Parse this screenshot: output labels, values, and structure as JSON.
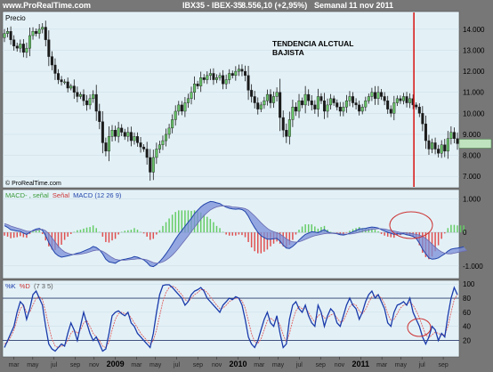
{
  "header": {
    "site": "www.ProRealTime.com",
    "instrument": "IBX35 - IBEX-35",
    "quote": "8.556,10 (+2,95%)",
    "period": "Semanal",
    "date": "11 nov 2011"
  },
  "colors": {
    "panel_bg": "#e3f1f7",
    "frame": "#7f7f7f",
    "candle": "#1a1a1a",
    "candle_up": "#66c266",
    "macd_line": "#2244aa",
    "macd_fill": "#7a8ed8",
    "hist_pos": "#66cc66",
    "hist_neg": "#e05050",
    "stoch_k": "#1a3aaa",
    "stoch_d": "#e06060",
    "annotation_line": "#d81e1e",
    "annotation_ellipse": "#cc3333"
  },
  "chart_data": [
    {
      "type": "candlestick",
      "label": "Precio",
      "watermark": "© ProRealTime.com",
      "annotation": [
        "TENDENCIA ALCTUAL",
        "BAJISTA"
      ],
      "ylim": [
        6500,
        14800
      ],
      "yticks": [
        "14.000",
        "13.000",
        "12.000",
        "11.000",
        "10.000",
        "9.000",
        "8.000",
        "7.000"
      ],
      "ytick_values": [
        14000,
        13000,
        12000,
        11000,
        10000,
        9000,
        8000,
        7000
      ],
      "vertical_marker_x": 0.904,
      "last_value": 8556.1,
      "close_series": [
        13800,
        13900,
        13500,
        13200,
        13100,
        13300,
        12900,
        13100,
        13700,
        13900,
        13800,
        14000,
        14100,
        13500,
        12700,
        12300,
        11900,
        11600,
        11500,
        11500,
        11200,
        11300,
        11000,
        10800,
        10900,
        10600,
        10400,
        10700,
        10900,
        10100,
        9600,
        8600,
        8200,
        8900,
        9200,
        8900,
        9300,
        9100,
        8900,
        9100,
        8700,
        8900,
        8600,
        8400,
        8300,
        7900,
        7200,
        7900,
        8300,
        8500,
        8700,
        9000,
        9300,
        9700,
        10100,
        10400,
        10100,
        10500,
        10700,
        11000,
        11400,
        11300,
        11700,
        11600,
        11800,
        11900,
        11600,
        11700,
        11800,
        11400,
        11600,
        11900,
        11800,
        12000,
        12100,
        12000,
        11800,
        11100,
        10800,
        10500,
        10200,
        10400,
        10600,
        10900,
        10500,
        10800,
        11000,
        9800,
        9200,
        8900,
        9700,
        10300,
        10100,
        10600,
        10400,
        10900,
        10600,
        10400,
        10200,
        10800,
        10600,
        10100,
        10400,
        10700,
        10500,
        10300,
        10100,
        10300,
        10600,
        10800,
        10500,
        10400,
        10100,
        10300,
        10600,
        10800,
        11000,
        10700,
        11000,
        10800,
        10600,
        10200,
        10000,
        10500,
        10700,
        10600,
        10800,
        10500,
        10700,
        10400,
        10300,
        10000,
        9500,
        8700,
        8300,
        8600,
        8300,
        8100,
        8500,
        8200,
        8800,
        9100,
        8800,
        8556
      ]
    },
    {
      "type": "line",
      "label": "MACD-, señal Señal MACD (12 26 9)",
      "legend": [
        "MACD-",
        "señal",
        "Señal",
        "MACD (12 26 9)"
      ],
      "ylim": [
        -1350,
        1250
      ],
      "yticks": [
        "1.000",
        "0",
        "-1.000"
      ],
      "ytick_values": [
        1000,
        0,
        -1000
      ],
      "series": [
        {
          "name": "MACD",
          "values": [
            200,
            150,
            80,
            60,
            40,
            30,
            -20,
            -60,
            0,
            60,
            100,
            120,
            60,
            -100,
            -300,
            -480,
            -620,
            -700,
            -740,
            -720,
            -700,
            -680,
            -650,
            -620,
            -600,
            -560,
            -520,
            -480,
            -420,
            -450,
            -520,
            -640,
            -800,
            -880,
            -900,
            -920,
            -860,
            -820,
            -800,
            -780,
            -760,
            -720,
            -740,
            -780,
            -820,
            -900,
            -1000,
            -1020,
            -960,
            -870,
            -760,
            -640,
            -500,
            -350,
            -200,
            -60,
            60,
            180,
            300,
            420,
            560,
            660,
            760,
            830,
            880,
            920,
            910,
            880,
            860,
            800,
            750,
            720,
            700,
            690,
            700,
            680,
            620,
            480,
            300,
            140,
            0,
            -100,
            -160,
            -200,
            -200,
            -190,
            -180,
            -260,
            -380,
            -470,
            -480,
            -420,
            -330,
            -230,
            -140,
            -60,
            -20,
            20,
            10,
            -10,
            40,
            80,
            20,
            -20,
            -30,
            -40,
            -70,
            -80,
            -60,
            -20,
            20,
            60,
            100,
            110,
            120,
            140,
            160,
            150,
            130,
            80,
            40,
            0,
            -30,
            -60,
            -40,
            -50,
            -40,
            -70,
            -90,
            -120,
            -180,
            -320,
            -500,
            -640,
            -760,
            -800,
            -790,
            -760,
            -700,
            -640,
            -560,
            -500,
            -480,
            -470,
            -450,
            -430
          ]
        },
        {
          "name": "Señal",
          "values": [
            260,
            230,
            190,
            160,
            130,
            100,
            70,
            40,
            30,
            40,
            60,
            80,
            90,
            50,
            -40,
            -160,
            -290,
            -410,
            -510,
            -580,
            -620,
            -650,
            -660,
            -660,
            -650,
            -630,
            -610,
            -580,
            -550,
            -530,
            -530,
            -560,
            -620,
            -690,
            -750,
            -800,
            -820,
            -830,
            -830,
            -820,
            -810,
            -800,
            -790,
            -790,
            -800,
            -820,
            -860,
            -900,
            -920,
            -910,
            -880,
            -830,
            -760,
            -680,
            -580,
            -470,
            -350,
            -230,
            -110,
            20,
            150,
            270,
            390,
            500,
            590,
            670,
            720,
            760,
            780,
            790,
            790,
            780,
            760,
            750,
            740,
            730,
            710,
            660,
            580,
            490,
            390,
            290,
            200,
            120,
            60,
            20,
            -10,
            -50,
            -120,
            -190,
            -250,
            -280,
            -290,
            -280,
            -250,
            -210,
            -170,
            -130,
            -100,
            -80,
            -60,
            -40,
            -30,
            -30,
            -30,
            -30,
            -40,
            -50,
            -50,
            -50,
            -40,
            -20,
            0,
            30,
            50,
            70,
            90,
            100,
            110,
            110,
            100,
            80,
            60,
            40,
            20,
            0,
            -10,
            -20,
            -30,
            -40,
            -60,
            -80,
            -120,
            -180,
            -260,
            -350,
            -440,
            -520,
            -580,
            -620,
            -640,
            -640,
            -620,
            -600,
            -580,
            -560,
            -540
          ]
        }
      ]
    },
    {
      "type": "line",
      "label": "%K %D (7 3 5)",
      "legend": [
        "%K",
        "%D",
        "(7 3 5)"
      ],
      "ylim": [
        -2,
        104
      ],
      "yticks": [
        "100",
        "80",
        "60",
        "40",
        "20"
      ],
      "ytick_values": [
        100,
        80,
        60,
        40,
        20
      ],
      "xticks": [
        "mar",
        "may",
        "jul",
        "sep",
        "nov",
        "2009",
        "mar",
        "may",
        "jul",
        "sep",
        "nov",
        "2010",
        "mar",
        "may",
        "jul",
        "sep",
        "nov",
        "2011",
        "mar",
        "may",
        "jul",
        "sep"
      ],
      "xtick_idx": [
        4,
        12,
        21,
        30,
        38,
        47,
        56,
        64,
        73,
        82,
        90,
        99,
        108,
        116,
        125,
        134,
        142,
        151,
        160,
        168,
        177,
        186
      ],
      "series": [
        {
          "name": "%K",
          "values": [
            10,
            20,
            30,
            40,
            60,
            75,
            70,
            50,
            65,
            85,
            90,
            80,
            70,
            40,
            15,
            8,
            5,
            10,
            15,
            12,
            30,
            45,
            35,
            20,
            40,
            60,
            45,
            30,
            20,
            25,
            15,
            5,
            8,
            30,
            55,
            60,
            62,
            58,
            55,
            60,
            45,
            40,
            30,
            25,
            20,
            15,
            10,
            30,
            60,
            85,
            98,
            99,
            99,
            95,
            90,
            85,
            80,
            70,
            75,
            85,
            90,
            92,
            95,
            90,
            80,
            75,
            70,
            65,
            60,
            70,
            75,
            80,
            78,
            82,
            80,
            70,
            50,
            25,
            15,
            10,
            20,
            35,
            50,
            60,
            45,
            40,
            55,
            30,
            10,
            15,
            50,
            70,
            75,
            65,
            60,
            70,
            55,
            45,
            40,
            70,
            60,
            40,
            55,
            65,
            60,
            45,
            40,
            55,
            70,
            80,
            70,
            65,
            50,
            60,
            75,
            85,
            90,
            80,
            85,
            75,
            65,
            45,
            40,
            60,
            70,
            72,
            75,
            70,
            80,
            60,
            50,
            40,
            25,
            15,
            25,
            40,
            35,
            20,
            30,
            25,
            55,
            80,
            95,
            85
          ]
        },
        {
          "name": "%D",
          "values": [
            15,
            18,
            25,
            35,
            50,
            65,
            70,
            60,
            60,
            70,
            80,
            82,
            78,
            60,
            40,
            22,
            12,
            10,
            12,
            13,
            20,
            30,
            35,
            30,
            35,
            45,
            48,
            40,
            30,
            25,
            20,
            12,
            10,
            18,
            35,
            50,
            58,
            60,
            58,
            58,
            52,
            45,
            38,
            30,
            25,
            20,
            15,
            20,
            35,
            55,
            75,
            88,
            95,
            97,
            95,
            90,
            85,
            78,
            75,
            80,
            85,
            88,
            92,
            92,
            88,
            82,
            76,
            70,
            65,
            66,
            70,
            75,
            78,
            80,
            80,
            76,
            66,
            48,
            30,
            18,
            16,
            22,
            35,
            48,
            52,
            48,
            50,
            42,
            28,
            18,
            30,
            48,
            62,
            68,
            65,
            66,
            60,
            52,
            46,
            55,
            58,
            52,
            52,
            56,
            58,
            52,
            46,
            48,
            58,
            68,
            72,
            70,
            62,
            58,
            64,
            74,
            82,
            84,
            84,
            80,
            72,
            58,
            48,
            50,
            58,
            66,
            70,
            72,
            74,
            70,
            62,
            52,
            40,
            28,
            24,
            28,
            32,
            30,
            28,
            28,
            40,
            60,
            78,
            85
          ]
        }
      ]
    }
  ]
}
